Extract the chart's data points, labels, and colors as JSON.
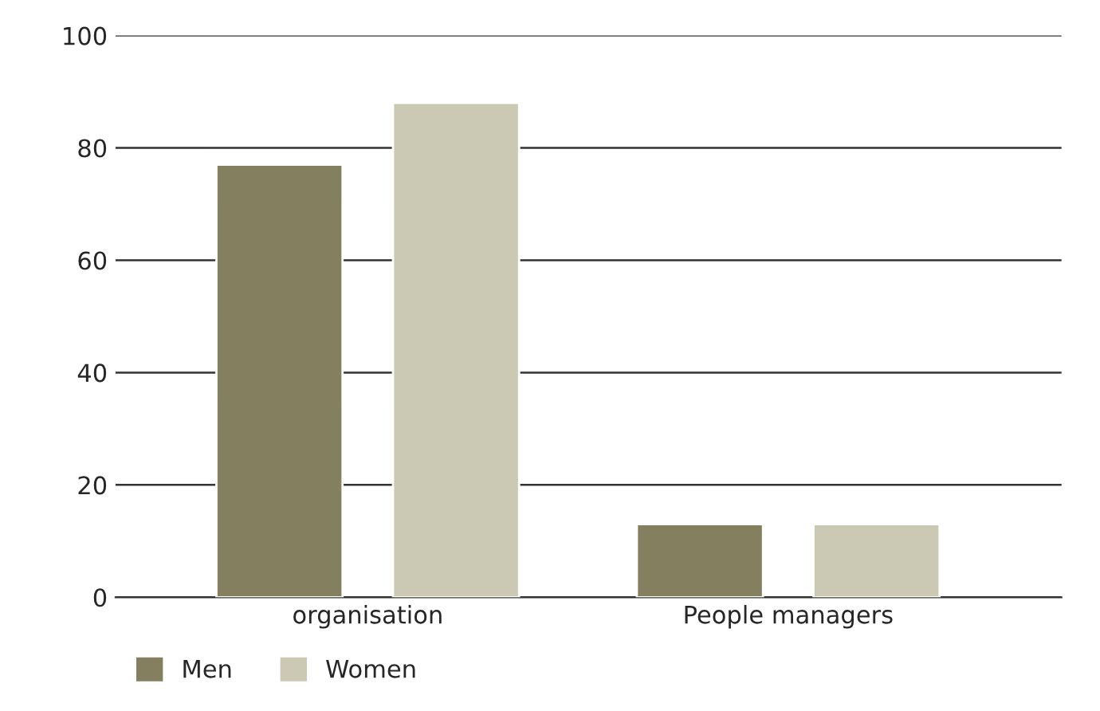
{
  "chart_data": {
    "type": "bar",
    "categories": [
      "organisation",
      "People managers"
    ],
    "series": [
      {
        "name": "Men",
        "color": "#847f5f",
        "values": [
          77,
          13
        ]
      },
      {
        "name": "Women",
        "color": "#cbc8b4",
        "values": [
          88,
          13
        ]
      }
    ],
    "ylim": [
      0,
      100
    ],
    "yticks": [
      0,
      20,
      40,
      60,
      80,
      100
    ],
    "grid": "y",
    "legend": "bottom left"
  }
}
